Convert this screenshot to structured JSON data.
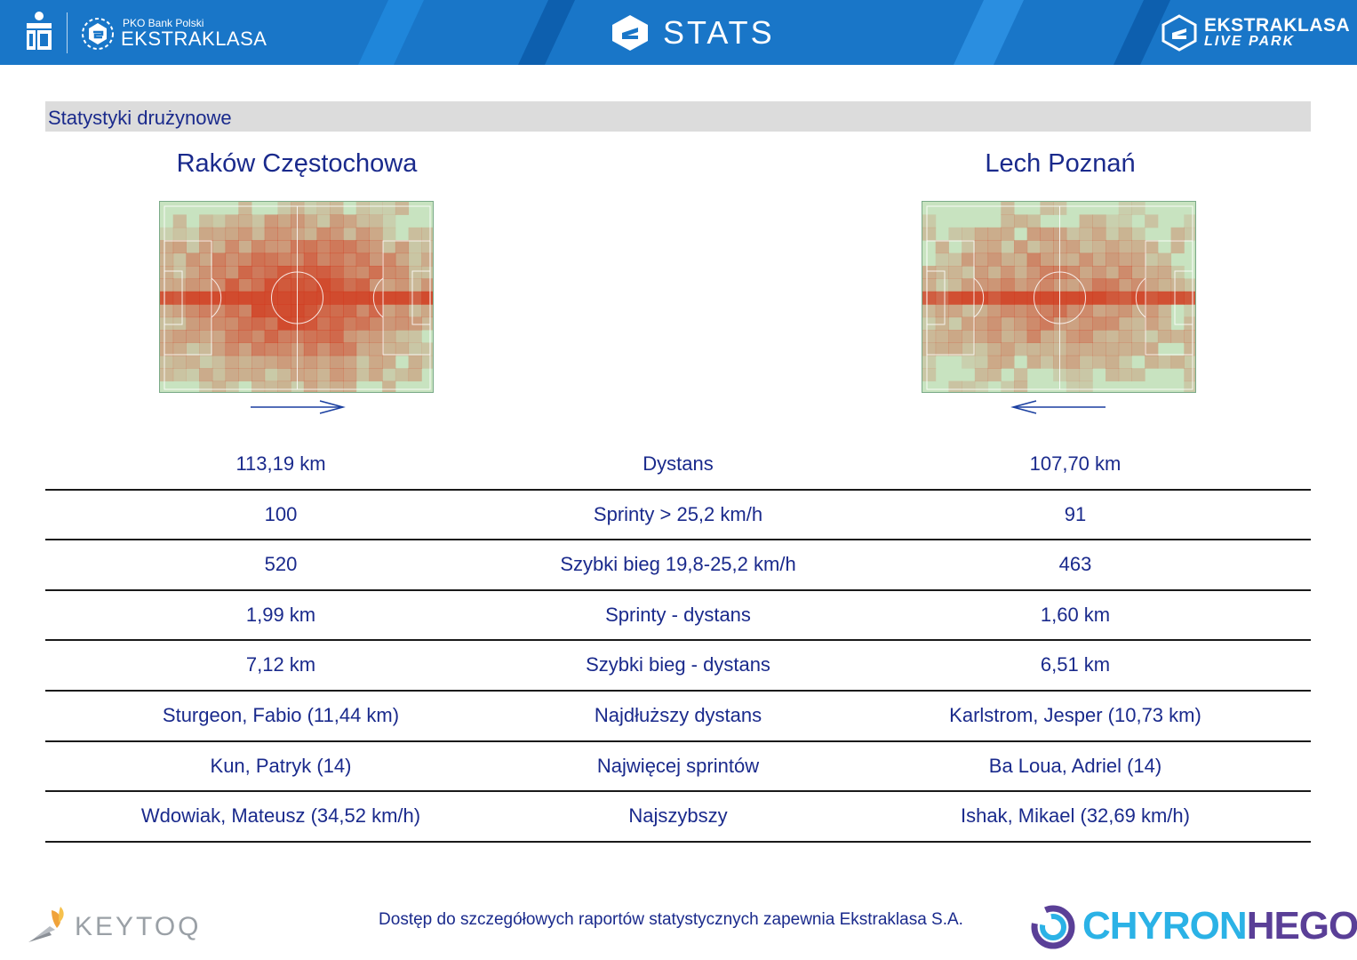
{
  "header": {
    "brand_small": "PKO Bank Polski",
    "brand_big": "EKSTRAKLASA",
    "title": "STATS",
    "livepark_line1": "EKSTRAKLASA",
    "livepark_line2": "LIVE PARK"
  },
  "section": {
    "title": "Statystyki drużynowe"
  },
  "teams": {
    "home": "Raków Częstochowa",
    "away": "Lech Poznań"
  },
  "stats": [
    {
      "home": "113,19 km",
      "label": "Dystans",
      "away": "107,70 km"
    },
    {
      "home": "100",
      "label": "Sprinty > 25,2 km/h",
      "away": "91"
    },
    {
      "home": "520",
      "label": "Szybki bieg 19,8-25,2 km/h",
      "away": "463"
    },
    {
      "home": "1,99 km",
      "label": "Sprinty - dystans",
      "away": "1,60 km"
    },
    {
      "home": "7,12 km",
      "label": "Szybki bieg - dystans",
      "away": "6,51 km"
    },
    {
      "home": "Sturgeon, Fabio (11,44 km)",
      "label": "Najdłuższy dystans",
      "away": "Karlstrom, Jesper (10,73 km)"
    },
    {
      "home": "Kun, Patryk (14)",
      "label": "Najwięcej sprintów",
      "away": "Ba Loua, Adriel (14)"
    },
    {
      "home": "Wdowiak, Mateusz (34,52 km/h)",
      "label": "Najszybszy",
      "away": "Ishak, Mikael (32,69 km/h)"
    }
  ],
  "footer": {
    "keytoq": "KEYTOQ",
    "note": "Dostęp do szczegółowych raportów statystycznych zapewnia Ekstraklasa S.A.",
    "chyron_a": "CHYRON",
    "chyron_b": "HEGO"
  },
  "colors": {
    "header_blue": "#1976c8",
    "text_navy": "#1a2a8c",
    "pitch_green": "#c8e3c0",
    "heat_red": "#d23a1e"
  },
  "heatmaps": {
    "home_attack_direction": "right",
    "away_attack_direction": "left"
  }
}
